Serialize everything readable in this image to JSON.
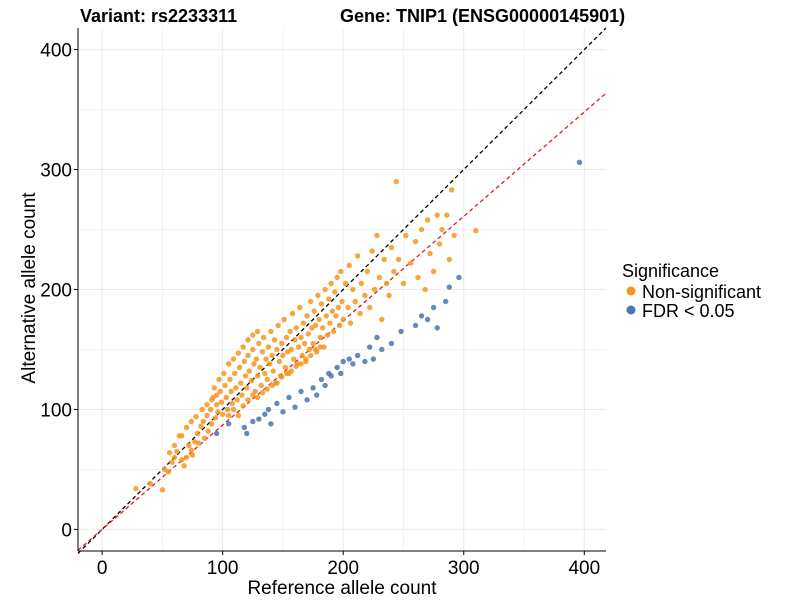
{
  "chart_data": {
    "type": "scatter",
    "title_left": "Variant: rs2233311",
    "title_right": "Gene: TNIP1 (ENSG00000145901)",
    "xlabel": "Reference allele count",
    "ylabel": "Alternative allele count",
    "xlim": [
      -20,
      418
    ],
    "ylim": [
      -18,
      418
    ],
    "xticks": [
      0,
      100,
      200,
      300,
      400
    ],
    "yticks": [
      0,
      100,
      200,
      300,
      400
    ],
    "grid": true,
    "reference_lines": [
      {
        "name": "identity",
        "slope": 1.0,
        "intercept": 0,
        "color": "#000000",
        "dash": "4,3"
      },
      {
        "name": "fit",
        "slope": 0.87,
        "intercept": 0,
        "color": "#e41a1c",
        "dash": "4,3"
      }
    ],
    "legend": {
      "title": "Significance",
      "position": "right",
      "entries": [
        {
          "label": "Non-significant",
          "color": "#f7941d"
        },
        {
          "label": "FDR < 0.05",
          "color": "#4a76ad"
        }
      ]
    },
    "series": [
      {
        "name": "Non-significant",
        "color": "#f7941d",
        "points": [
          [
            28,
            34
          ],
          [
            40,
            38
          ],
          [
            50,
            33
          ],
          [
            52,
            50
          ],
          [
            55,
            48
          ],
          [
            58,
            56
          ],
          [
            60,
            60
          ],
          [
            62,
            65
          ],
          [
            64,
            78
          ],
          [
            66,
            58
          ],
          [
            68,
            53
          ],
          [
            70,
            60
          ],
          [
            72,
            70
          ],
          [
            74,
            66
          ],
          [
            75,
            62
          ],
          [
            77,
            73
          ],
          [
            79,
            80
          ],
          [
            80,
            72
          ],
          [
            82,
            86
          ],
          [
            84,
            90
          ],
          [
            85,
            76
          ],
          [
            87,
            95
          ],
          [
            88,
            82
          ],
          [
            90,
            100
          ],
          [
            91,
            88
          ],
          [
            92,
            110
          ],
          [
            94,
            93
          ],
          [
            95,
            104
          ],
          [
            96,
            98
          ],
          [
            98,
            115
          ],
          [
            99,
            106
          ],
          [
            100,
            96
          ],
          [
            102,
            120
          ],
          [
            103,
            110
          ],
          [
            104,
            100
          ],
          [
            106,
            125
          ],
          [
            107,
            115
          ],
          [
            108,
            105
          ],
          [
            110,
            130
          ],
          [
            111,
            118
          ],
          [
            112,
            108
          ],
          [
            114,
            135
          ],
          [
            115,
            122
          ],
          [
            116,
            112
          ],
          [
            118,
            140
          ],
          [
            119,
            128
          ],
          [
            120,
            118
          ],
          [
            121,
            145
          ],
          [
            122,
            132
          ],
          [
            124,
            124
          ],
          [
            125,
            150
          ],
          [
            126,
            138
          ],
          [
            127,
            115
          ],
          [
            128,
            142
          ],
          [
            129,
            128
          ],
          [
            130,
            155
          ],
          [
            131,
            135
          ],
          [
            132,
            120
          ],
          [
            133,
            148
          ],
          [
            134,
            160
          ],
          [
            135,
            130
          ],
          [
            136,
            142
          ],
          [
            137,
            125
          ],
          [
            138,
            152
          ],
          [
            139,
            138
          ],
          [
            140,
            165
          ],
          [
            141,
            145
          ],
          [
            142,
            132
          ],
          [
            143,
            158
          ],
          [
            144,
            122
          ],
          [
            145,
            150
          ],
          [
            146,
            170
          ],
          [
            147,
            140
          ],
          [
            148,
            128
          ],
          [
            149,
            155
          ],
          [
            150,
            145
          ],
          [
            151,
            175
          ],
          [
            152,
            135
          ],
          [
            153,
            160
          ],
          [
            154,
            148
          ],
          [
            155,
            130
          ],
          [
            156,
            165
          ],
          [
            157,
            150
          ],
          [
            158,
            180
          ],
          [
            159,
            142
          ],
          [
            160,
            158
          ],
          [
            161,
            168
          ],
          [
            162,
            138
          ],
          [
            163,
            152
          ],
          [
            164,
            185
          ],
          [
            165,
            160
          ],
          [
            166,
            145
          ],
          [
            167,
            172
          ],
          [
            168,
            155
          ],
          [
            169,
            140
          ],
          [
            170,
            178
          ],
          [
            171,
            163
          ],
          [
            172,
            150
          ],
          [
            173,
            190
          ],
          [
            174,
            168
          ],
          [
            175,
            155
          ],
          [
            176,
            182
          ],
          [
            177,
            170
          ],
          [
            178,
            148
          ],
          [
            179,
            195
          ],
          [
            180,
            175
          ],
          [
            181,
            160
          ],
          [
            182,
            188
          ],
          [
            183,
            168
          ],
          [
            184,
            152
          ],
          [
            185,
            200
          ],
          [
            186,
            178
          ],
          [
            187,
            162
          ],
          [
            188,
            192
          ],
          [
            189,
            172
          ],
          [
            190,
            205
          ],
          [
            191,
            182
          ],
          [
            192,
            165
          ],
          [
            193,
            198
          ],
          [
            194,
            178
          ],
          [
            195,
            210
          ],
          [
            196,
            185
          ],
          [
            197,
            170
          ],
          [
            198,
            215
          ],
          [
            199,
            190
          ],
          [
            200,
            175
          ],
          [
            202,
            205
          ],
          [
            204,
            185
          ],
          [
            205,
            220
          ],
          [
            206,
            172
          ],
          [
            208,
            200
          ],
          [
            210,
            190
          ],
          [
            212,
            228
          ],
          [
            214,
            180
          ],
          [
            215,
            205
          ],
          [
            218,
            195
          ],
          [
            220,
            215
          ],
          [
            222,
            185
          ],
          [
            224,
            232
          ],
          [
            226,
            200
          ],
          [
            228,
            245
          ],
          [
            230,
            210
          ],
          [
            232,
            175
          ],
          [
            234,
            225
          ],
          [
            236,
            205
          ],
          [
            238,
            195
          ],
          [
            240,
            235
          ],
          [
            242,
            215
          ],
          [
            244,
            290
          ],
          [
            246,
            225
          ],
          [
            250,
            205
          ],
          [
            252,
            245
          ],
          [
            256,
            222
          ],
          [
            260,
            240
          ],
          [
            262,
            210
          ],
          [
            265,
            250
          ],
          [
            268,
            200
          ],
          [
            270,
            258
          ],
          [
            272,
            230
          ],
          [
            275,
            215
          ],
          [
            278,
            262
          ],
          [
            280,
            238
          ],
          [
            282,
            250
          ],
          [
            286,
            262
          ],
          [
            288,
            225
          ],
          [
            290,
            283
          ],
          [
            292,
            245
          ],
          [
            310,
            249
          ],
          [
            105,
            95
          ],
          [
            109,
            100
          ],
          [
            113,
            95
          ],
          [
            117,
            103
          ],
          [
            121,
            108
          ],
          [
            125,
            112
          ],
          [
            129,
            110
          ],
          [
            133,
            114
          ],
          [
            137,
            117
          ],
          [
            141,
            120
          ],
          [
            145,
            122
          ],
          [
            149,
            127
          ],
          [
            153,
            130
          ],
          [
            157,
            132
          ],
          [
            161,
            136
          ],
          [
            165,
            138
          ],
          [
            169,
            142
          ],
          [
            173,
            145
          ],
          [
            177,
            150
          ],
          [
            181,
            152
          ],
          [
            93,
            118
          ],
          [
            97,
            125
          ],
          [
            101,
            130
          ],
          [
            105,
            138
          ],
          [
            109,
            142
          ],
          [
            113,
            147
          ],
          [
            117,
            152
          ],
          [
            121,
            158
          ],
          [
            125,
            162
          ],
          [
            129,
            165
          ],
          [
            83,
            100
          ],
          [
            87,
            104
          ],
          [
            91,
            108
          ],
          [
            95,
            112
          ],
          [
            70,
            85
          ],
          [
            74,
            90
          ],
          [
            78,
            94
          ],
          [
            66,
            78
          ],
          [
            60,
            70
          ],
          [
            56,
            64
          ]
        ]
      },
      {
        "name": "FDR < 0.05",
        "color": "#4a76ad",
        "points": [
          [
            95,
            80
          ],
          [
            105,
            88
          ],
          [
            118,
            85
          ],
          [
            120,
            80
          ],
          [
            125,
            90
          ],
          [
            130,
            92
          ],
          [
            135,
            96
          ],
          [
            138,
            100
          ],
          [
            140,
            88
          ],
          [
            145,
            105
          ],
          [
            150,
            98
          ],
          [
            155,
            110
          ],
          [
            160,
            102
          ],
          [
            165,
            115
          ],
          [
            170,
            108
          ],
          [
            175,
            118
          ],
          [
            178,
            112
          ],
          [
            182,
            125
          ],
          [
            185,
            120
          ],
          [
            188,
            130
          ],
          [
            190,
            128
          ],
          [
            195,
            135
          ],
          [
            198,
            130
          ],
          [
            200,
            140
          ],
          [
            205,
            142
          ],
          [
            208,
            138
          ],
          [
            212,
            145
          ],
          [
            218,
            140
          ],
          [
            222,
            152
          ],
          [
            225,
            142
          ],
          [
            228,
            160
          ],
          [
            232,
            150
          ],
          [
            240,
            155
          ],
          [
            248,
            165
          ],
          [
            260,
            170
          ],
          [
            265,
            178
          ],
          [
            270,
            175
          ],
          [
            275,
            185
          ],
          [
            278,
            168
          ],
          [
            285,
            190
          ],
          [
            288,
            202
          ],
          [
            296,
            210
          ],
          [
            396,
            306
          ]
        ]
      }
    ]
  }
}
